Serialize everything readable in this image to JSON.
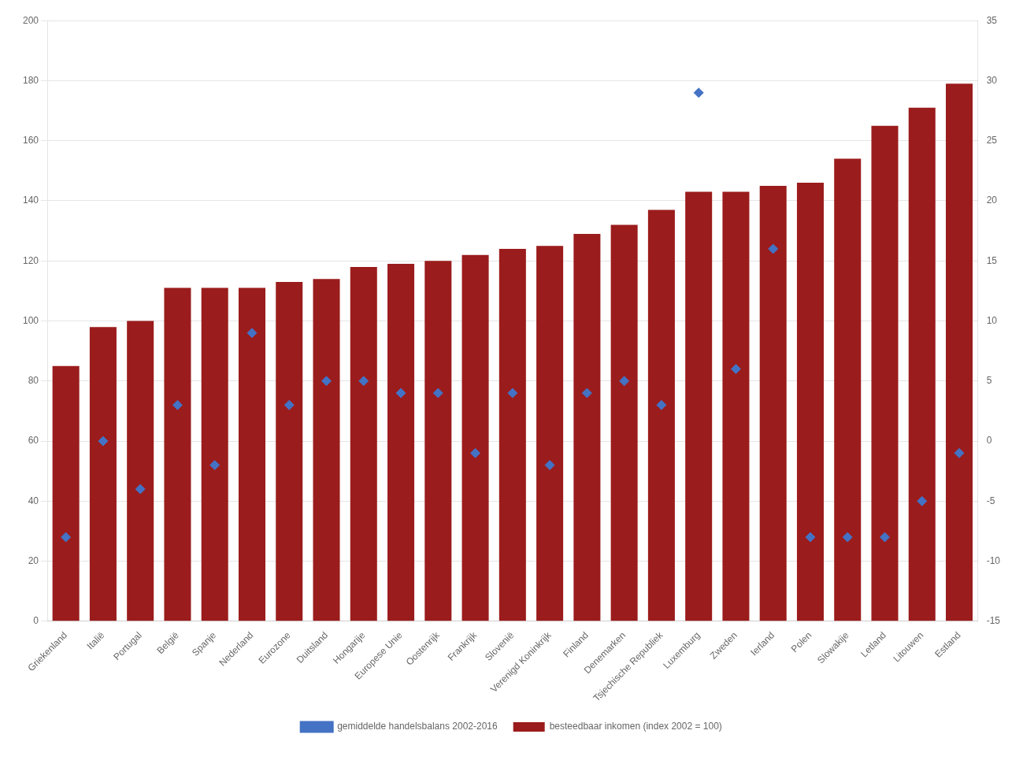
{
  "chart_data": {
    "type": "bar",
    "categories": [
      "Griekenland",
      "Italië",
      "Portugal",
      "België",
      "Spanje",
      "Nederland",
      "Eurozone",
      "Duitsland",
      "Hongarije",
      "Europese Unie",
      "Oostenrijk",
      "Frankrijk",
      "Slovenië",
      "Verenigd Koninkrijk",
      "Finland",
      "Denemarken",
      "Tsjechische Republiek",
      "Luxemburg",
      "Zweden",
      "Ierland",
      "Polen",
      "Slowakije",
      "Letland",
      "Litouwen",
      "Estland"
    ],
    "series": [
      {
        "name": "besteedbaar inkomen (index 2002 = 100)",
        "type": "bar",
        "color": "#9B1C1C",
        "values": [
          85,
          98,
          100,
          111,
          111,
          111,
          113,
          114,
          118,
          119,
          120,
          122,
          124,
          125,
          129,
          132,
          137,
          143,
          143,
          145,
          146,
          154,
          165,
          171,
          179
        ]
      },
      {
        "name": "gemiddelde handelsbalans 2002-2016",
        "type": "scatter",
        "axis": "y2",
        "marker": "diamond",
        "color": "#4472C4",
        "values": [
          -8,
          0,
          -4,
          3,
          -2,
          9,
          3,
          5,
          5,
          4,
          4,
          -1,
          4,
          -2,
          4,
          5,
          3,
          29,
          6,
          16,
          -8,
          -8,
          -8,
          -5,
          -1
        ]
      }
    ],
    "ylim": [
      0,
      200
    ],
    "yticks": [
      0,
      20,
      40,
      60,
      80,
      100,
      120,
      140,
      160,
      180,
      200
    ],
    "y2lim": [
      -15,
      35
    ],
    "y2ticks": [
      -15,
      -10,
      -5,
      0,
      5,
      10,
      15,
      20,
      25,
      30,
      35
    ],
    "grid": true,
    "legend": "bottom"
  }
}
